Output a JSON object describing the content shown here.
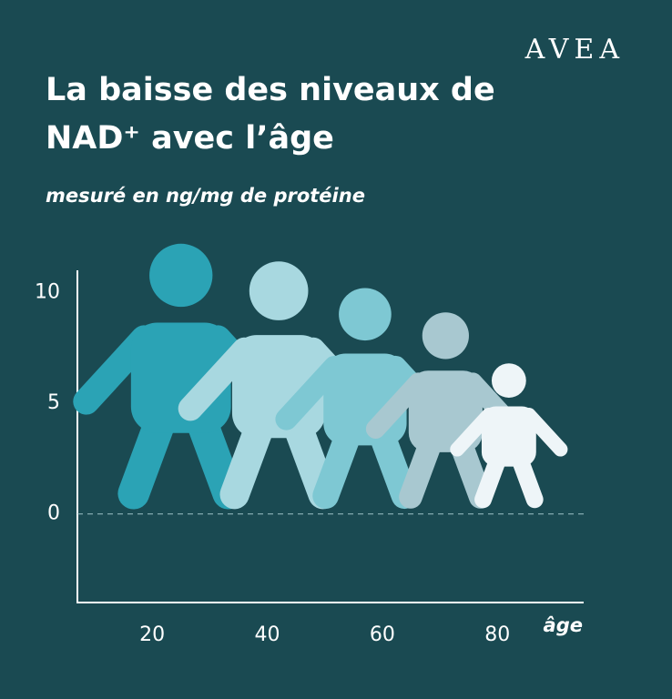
{
  "chart_data": {
    "type": "pictogram",
    "logo": "AVEA",
    "title": [
      "La baisse des niveaux de",
      "NAD⁺ avec l’âge"
    ],
    "subtitle": "mesuré en ng/mg de protéine",
    "x_label": "âge",
    "x": [
      25,
      42,
      57,
      71,
      82
    ],
    "values": [
      12.2,
      11.4,
      10.2,
      9.1,
      6.8
    ],
    "colors": [
      "#2ba3b5",
      "#a8d8e0",
      "#7ec8d3",
      "#a8c8d0",
      "#eef5f8"
    ],
    "xlim": [
      7,
      95
    ],
    "xticks": [
      20,
      40,
      60,
      80
    ],
    "ylim": [
      -4,
      11
    ],
    "yticks": [
      0,
      5,
      10
    ],
    "reference_line": 0
  }
}
